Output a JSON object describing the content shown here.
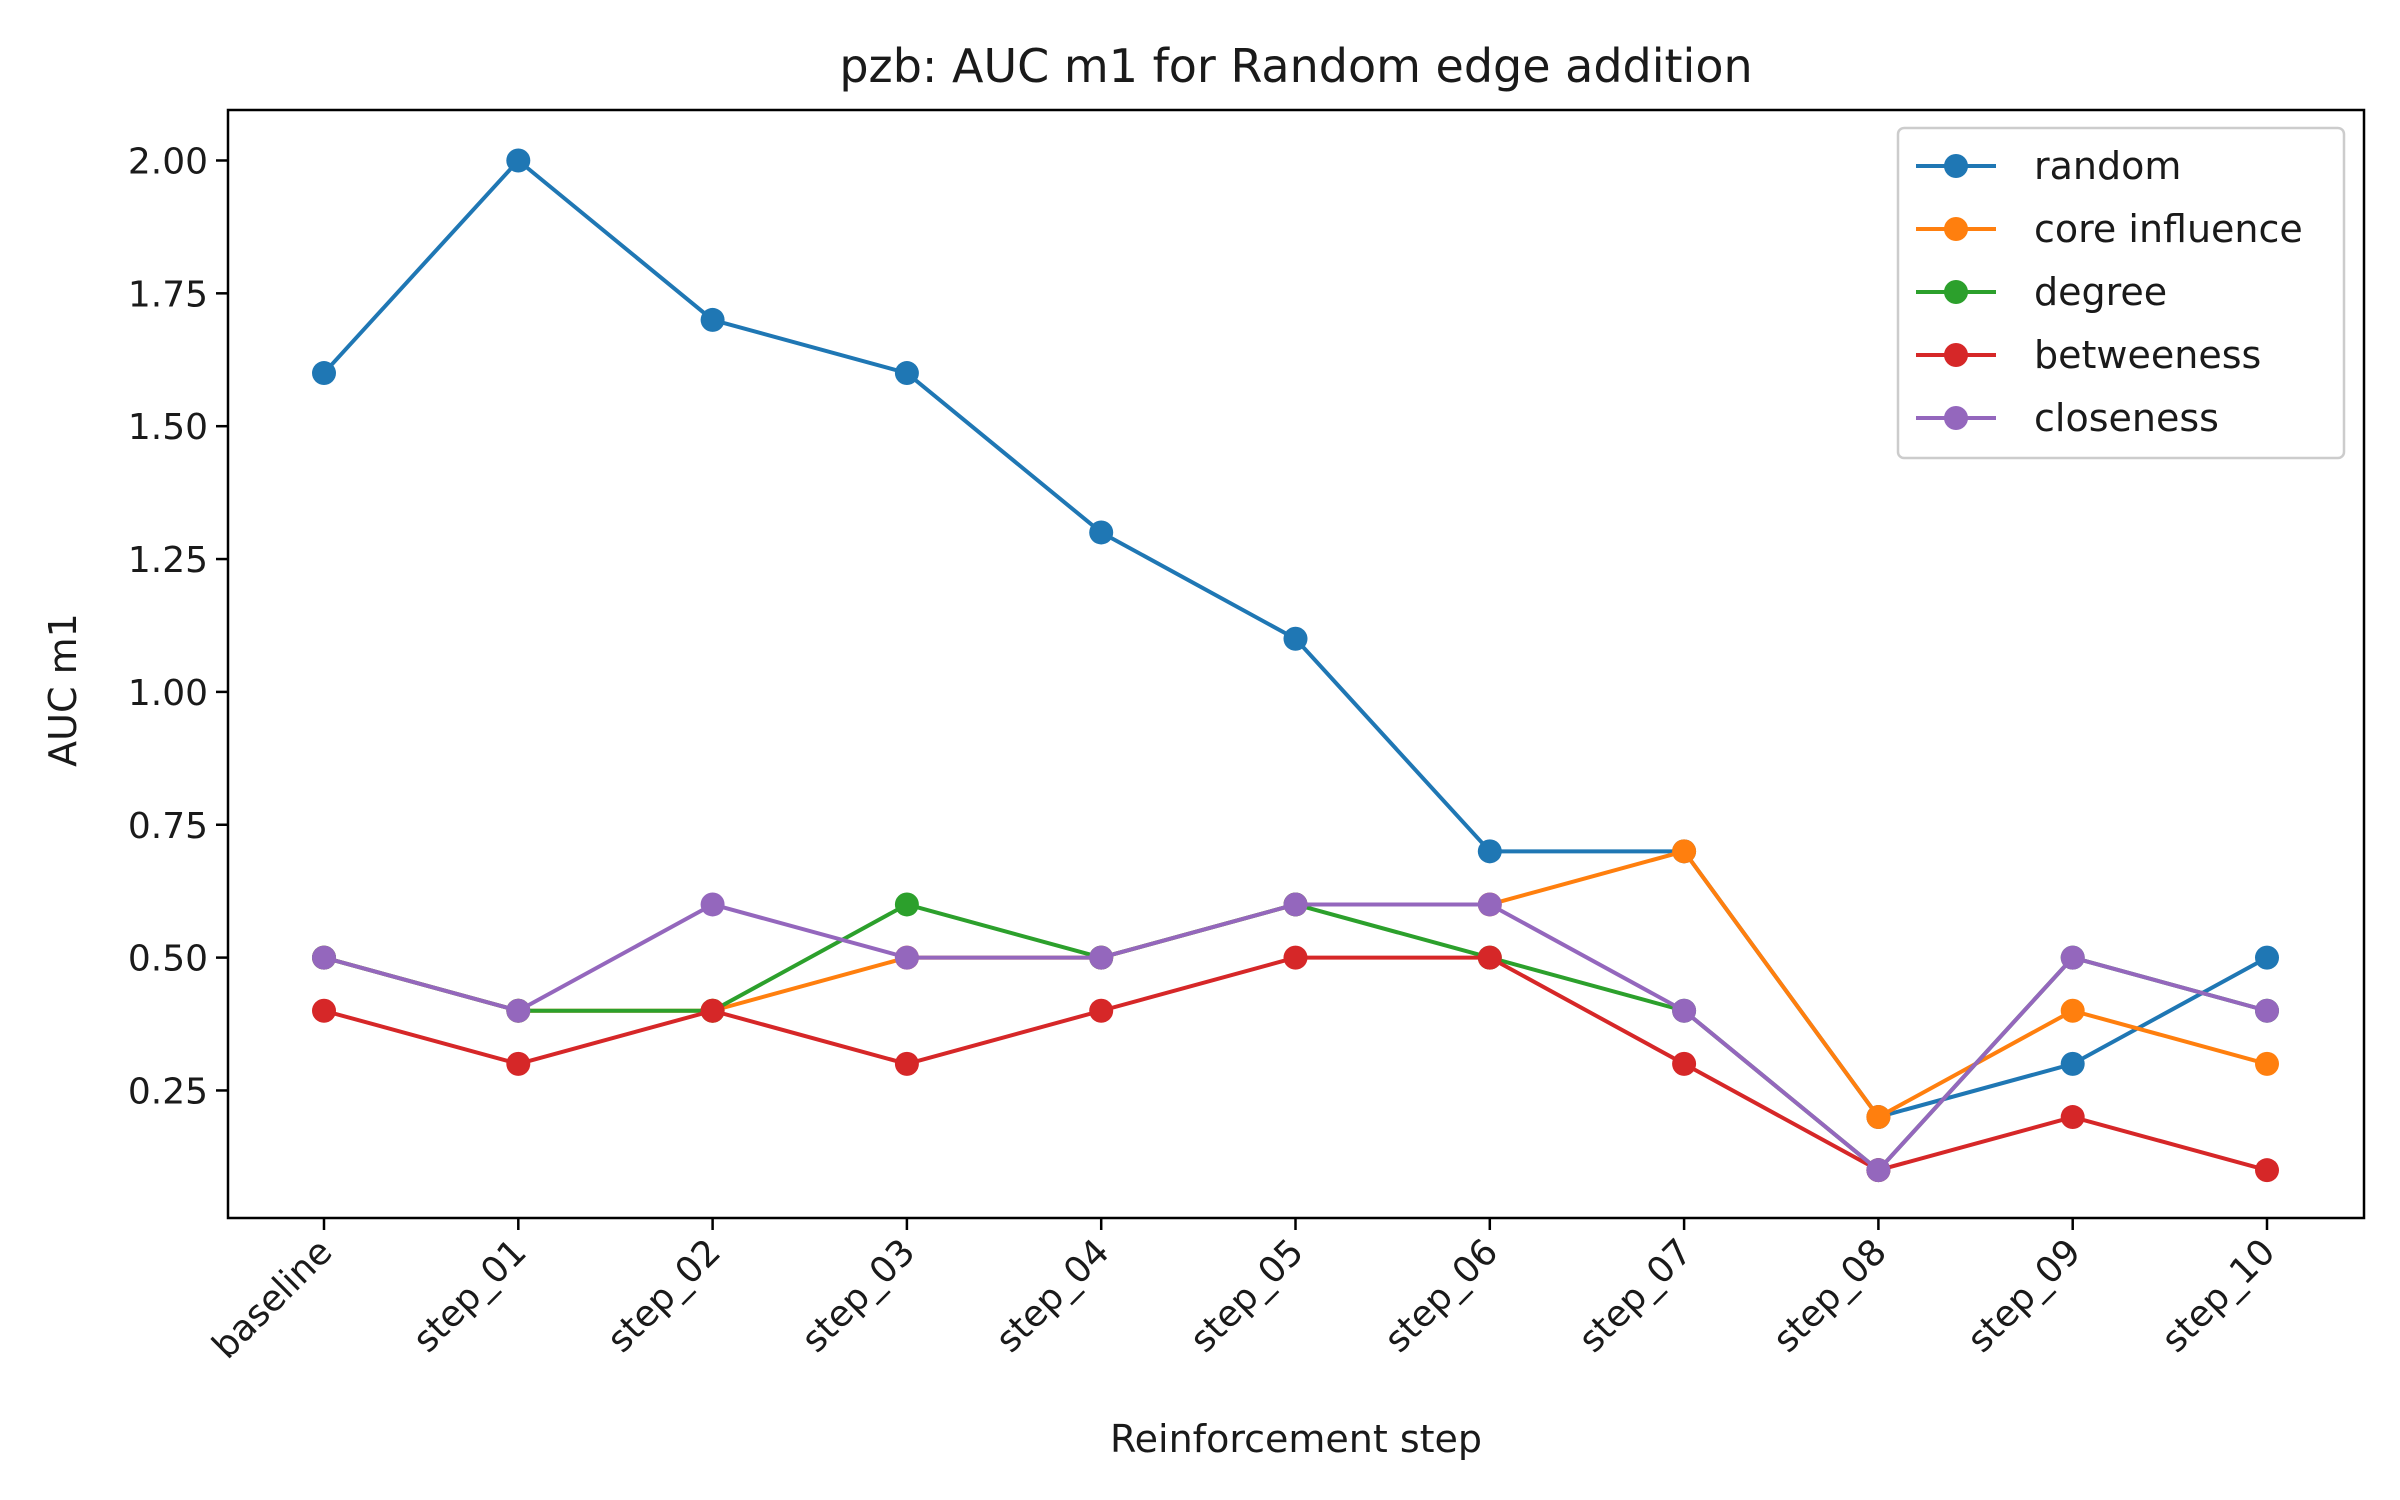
{
  "chart_data": {
    "type": "line",
    "title": "pzb: AUC m1 for Random edge addition",
    "xlabel": "Reinforcement step",
    "ylabel": "AUC m1",
    "categories": [
      "baseline",
      "step_01",
      "step_02",
      "step_03",
      "step_04",
      "step_05",
      "step_06",
      "step_07",
      "step_08",
      "step_09",
      "step_10"
    ],
    "ylim": [
      0.01,
      2.095
    ],
    "yticks": [
      0.25,
      0.5,
      0.75,
      1.0,
      1.25,
      1.5,
      1.75,
      2.0
    ],
    "ytick_labels": [
      "0.25",
      "0.50",
      "0.75",
      "1.00",
      "1.25",
      "1.50",
      "1.75",
      "2.00"
    ],
    "grid": false,
    "legend_position": "top-right",
    "series": [
      {
        "name": "random",
        "color": "#1f77b4",
        "values": [
          1.6,
          2.0,
          1.7,
          1.6,
          1.3,
          1.1,
          0.7,
          0.7,
          0.2,
          0.3,
          0.5
        ]
      },
      {
        "name": "core influence",
        "color": "#ff7f0e",
        "values": [
          0.5,
          0.4,
          0.4,
          0.5,
          0.5,
          0.6,
          0.6,
          0.7,
          0.2,
          0.4,
          0.3
        ]
      },
      {
        "name": "degree",
        "color": "#2ca02c",
        "values": [
          0.5,
          0.4,
          0.4,
          0.6,
          0.5,
          0.6,
          0.5,
          0.4,
          0.1,
          0.5,
          0.4
        ]
      },
      {
        "name": "betweeness",
        "color": "#d62728",
        "values": [
          0.4,
          0.3,
          0.4,
          0.3,
          0.4,
          0.5,
          0.5,
          0.3,
          0.1,
          0.2,
          0.1
        ]
      },
      {
        "name": "closeness",
        "color": "#9467bd",
        "values": [
          0.5,
          0.4,
          0.6,
          0.5,
          0.5,
          0.6,
          0.6,
          0.4,
          0.1,
          0.5,
          0.4
        ]
      }
    ]
  }
}
